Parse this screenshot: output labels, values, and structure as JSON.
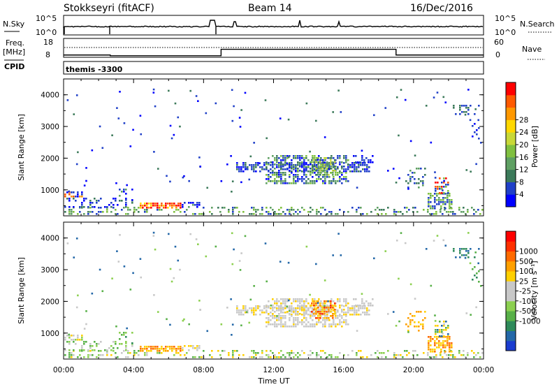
{
  "header": {
    "station": "Stokkseyri (fitACF)",
    "beam": "Beam 14",
    "date": "16/Dec/2016"
  },
  "noise_panel": {
    "left_label": "N.Sky",
    "right_label": "N.Search",
    "top_tick": "10^5",
    "bottom_tick": "10^0"
  },
  "freq_panel": {
    "left_label_1": "Freq.",
    "left_label_2": "[MHz]",
    "left_ticks": [
      "18",
      "8"
    ],
    "right_label": "Nave",
    "right_ticks": [
      "60",
      "0"
    ],
    "frequency_mhz_levels": [
      {
        "from": "00:00",
        "to": "02:40",
        "value": 8.6
      },
      {
        "from": "02:40",
        "to": "09:00",
        "value": 8.1
      },
      {
        "from": "09:00",
        "to": "19:00",
        "value": 12.5
      },
      {
        "from": "19:00",
        "to": "24:00",
        "value": 8.6
      }
    ]
  },
  "cpid": {
    "label": "CPID",
    "value": "themis -3300"
  },
  "chart_data": [
    {
      "type": "heatmap",
      "name": "power",
      "ylabel": "Slant Range [km]",
      "xlabel": "",
      "y_ticks": [
        "1000",
        "2000",
        "3000",
        "4000"
      ],
      "ylim": [
        180,
        4500
      ],
      "xlim": [
        0,
        24
      ],
      "colorbar": {
        "label": "Power [dB]",
        "ticks": [
          "4",
          "8",
          "12",
          "16",
          "20",
          "24",
          "28"
        ],
        "colors": [
          "#0000ff",
          "#2040c8",
          "#3c7a5a",
          "#5fa063",
          "#80c040",
          "#c8d838",
          "#ffd800",
          "#ff9800",
          "#ff5a00",
          "#ff0000"
        ]
      }
    },
    {
      "type": "heatmap",
      "name": "velocity",
      "ylabel": "Slant Range [km]",
      "xlabel": "Time UT",
      "x_ticks": [
        "00:00",
        "04:00",
        "08:00",
        "12:00",
        "16:00",
        "20:00",
        "00:00"
      ],
      "y_ticks": [
        "1000",
        "2000",
        "3000",
        "4000"
      ],
      "ylim": [
        180,
        4500
      ],
      "xlim": [
        0,
        24
      ],
      "colorbar": {
        "label": "Velocity [m s⁻¹]",
        "ticks": [
          "1000",
          "500",
          "100",
          "25",
          "-25",
          "-100",
          "-500",
          "-1000"
        ],
        "colors": [
          "#1a3cd0",
          "#2468a8",
          "#2e8a5a",
          "#58b048",
          "#8cd050",
          "#c8c8c8",
          "#c8c8c8",
          "#ffd000",
          "#ffa000",
          "#ff6a00",
          "#ff3000",
          "#ff0000"
        ]
      }
    }
  ]
}
